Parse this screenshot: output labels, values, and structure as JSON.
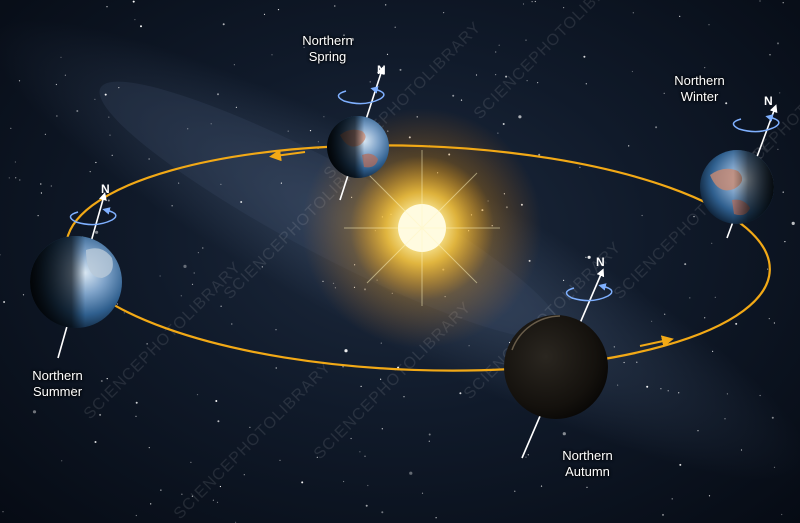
{
  "labels": {
    "spring": [
      "Northern",
      "Spring"
    ],
    "winter": [
      "Northern",
      "Winter"
    ],
    "summer": [
      "Northern",
      "Summer"
    ],
    "autumn": [
      "Northern",
      "Autumn"
    ]
  },
  "north_marker": "N",
  "watermark": "SCIENCEPHOTOLIBRARY",
  "colors": {
    "orbit": "#f2a916",
    "sun_core": "#fffbe0",
    "sun_glow": "#ffb300",
    "spin_arrow": "#7fb0ff",
    "sky": "#0c1524"
  }
}
